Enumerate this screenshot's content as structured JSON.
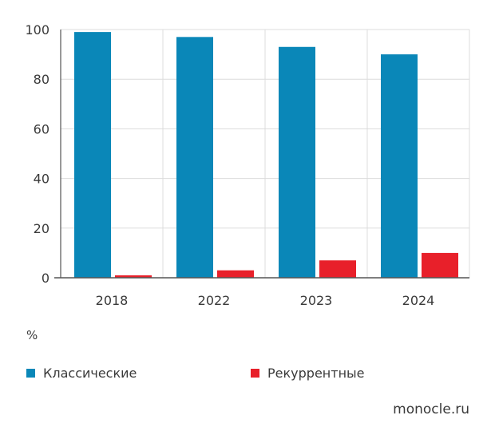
{
  "chart_data": {
    "type": "bar",
    "categories": [
      "2018",
      "2022",
      "2023",
      "2024"
    ],
    "series": [
      {
        "name": "Классические",
        "color": "#0a87b8",
        "values": [
          99,
          97,
          93,
          90
        ]
      },
      {
        "name": "Рекуррентные",
        "color": "#e8202a",
        "values": [
          1,
          3,
          7,
          10
        ]
      }
    ],
    "ylim": [
      0,
      100
    ],
    "yticks": [
      0,
      20,
      40,
      60,
      80,
      100
    ],
    "unit": "%",
    "grid": true,
    "legend_position": "bottom"
  },
  "source": "monocle.ru"
}
